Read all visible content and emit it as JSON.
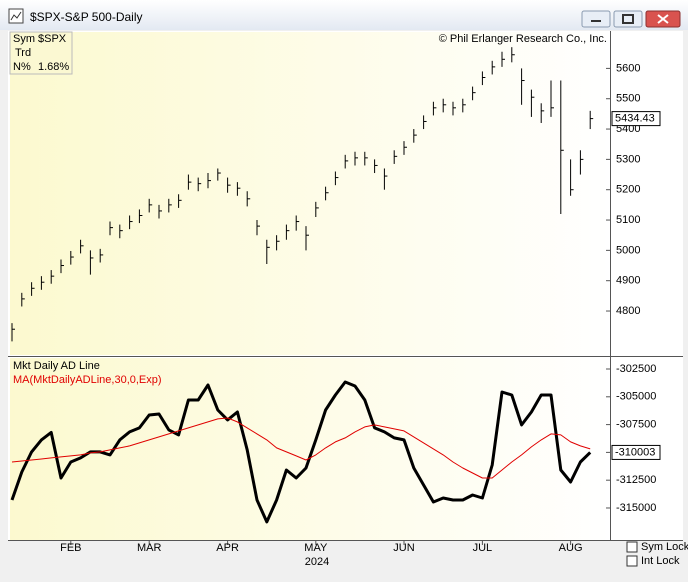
{
  "window": {
    "title": "$SPX-S&P 500-Daily"
  },
  "info": {
    "rows": [
      [
        "Sym",
        "$SPX"
      ],
      [
        "Trd"
      ],
      [
        "N%",
        "1.68%"
      ]
    ]
  },
  "controls": [
    "Sym Lock",
    "Int Lock"
  ],
  "chart_data": [
    {
      "type": "ohlc",
      "annotation": "© Phil Erlanger Research Co., Inc.",
      "color": "#000000",
      "close": [
        4740,
        4840,
        4875,
        4895,
        4915,
        4950,
        4978,
        5015,
        4975,
        4985,
        5075,
        5065,
        5095,
        5115,
        5150,
        5130,
        5150,
        5165,
        5225,
        5220,
        5230,
        5255,
        5215,
        5205,
        5170,
        5080,
        5010,
        5030,
        5065,
        5095,
        5050,
        5140,
        5190,
        5240,
        5295,
        5305,
        5305,
        5280,
        5245,
        5310,
        5340,
        5380,
        5425,
        5470,
        5480,
        5470,
        5480,
        5520,
        5570,
        5605,
        5630,
        5645,
        5560,
        5505,
        5460,
        5470,
        5330,
        5200,
        5300,
        5434.43
      ],
      "high": [
        4760,
        4860,
        4895,
        4915,
        4935,
        4970,
        4998,
        5035,
        5000,
        5005,
        5095,
        5085,
        5115,
        5135,
        5170,
        5150,
        5170,
        5185,
        5250,
        5240,
        5255,
        5270,
        5240,
        5225,
        5195,
        5100,
        5035,
        5050,
        5085,
        5115,
        5080,
        5160,
        5210,
        5260,
        5315,
        5325,
        5325,
        5300,
        5270,
        5330,
        5360,
        5400,
        5445,
        5490,
        5500,
        5490,
        5500,
        5540,
        5590,
        5625,
        5655,
        5670,
        5600,
        5530,
        5485,
        5560,
        5560,
        5300,
        5330,
        5460
      ],
      "low": [
        4700,
        4815,
        4850,
        4870,
        4890,
        4925,
        4953,
        4990,
        4920,
        4960,
        5050,
        5040,
        5070,
        5090,
        5125,
        5105,
        5125,
        5140,
        5200,
        5195,
        5205,
        5230,
        5190,
        5180,
        5145,
        5050,
        4955,
        5000,
        5035,
        5065,
        5000,
        5110,
        5165,
        5215,
        5270,
        5280,
        5280,
        5255,
        5200,
        5285,
        5315,
        5355,
        5400,
        5445,
        5455,
        5445,
        5455,
        5495,
        5545,
        5580,
        5605,
        5620,
        5480,
        5440,
        5420,
        5440,
        5120,
        5180,
        5250,
        5400
      ],
      "ylim": [
        4655,
        5720
      ],
      "yticks": [
        4800,
        4900,
        5000,
        5100,
        5200,
        5300,
        5400,
        5500,
        5600
      ]
    },
    {
      "type": "line",
      "x_label": "2024",
      "categories": [
        null,
        null,
        null,
        null,
        null,
        null,
        "FEB",
        null,
        null,
        null,
        null,
        null,
        null,
        null,
        "MAR",
        null,
        null,
        null,
        null,
        null,
        null,
        null,
        "APR",
        null,
        null,
        null,
        null,
        null,
        null,
        null,
        null,
        "MAY",
        null,
        null,
        null,
        null,
        null,
        null,
        null,
        null,
        "JUN",
        null,
        null,
        null,
        null,
        null,
        null,
        null,
        "JUL",
        null,
        null,
        null,
        null,
        null,
        null,
        null,
        null,
        "AUG",
        null,
        null
      ],
      "series": [
        {
          "name": "Mkt Daily AD Line",
          "color": "#000000",
          "values": [
            -314280,
            -311760,
            -309960,
            -308880,
            -308200,
            -312300,
            -310860,
            -310500,
            -309960,
            -309960,
            -310230,
            -308880,
            -308160,
            -307800,
            -306640,
            -306550,
            -307980,
            -308430,
            -305290,
            -305290,
            -303940,
            -306190,
            -307080,
            -306370,
            -309780,
            -314280,
            -316250,
            -314280,
            -311580,
            -312300,
            -311400,
            -308880,
            -306190,
            -304840,
            -303670,
            -304030,
            -305290,
            -307800,
            -308160,
            -308700,
            -308880,
            -311400,
            -312930,
            -314460,
            -314100,
            -314280,
            -314280,
            -313830,
            -314100,
            -311130,
            -304570,
            -304840,
            -307530,
            -306370,
            -304840,
            -304840,
            -311580,
            -312660,
            -310860,
            -310003
          ]
        },
        {
          "name": "MA(MktDailyADLine,30,0,Exp)",
          "color": "#e00000",
          "values": [
            -310860,
            -310770,
            -310680,
            -310590,
            -310500,
            -310410,
            -310320,
            -310230,
            -310050,
            -309960,
            -309780,
            -309600,
            -309420,
            -309150,
            -308880,
            -308610,
            -308340,
            -308070,
            -307800,
            -307530,
            -307260,
            -306990,
            -306910,
            -307260,
            -307800,
            -308340,
            -308880,
            -309600,
            -309960,
            -310320,
            -310680,
            -310230,
            -309600,
            -309060,
            -308700,
            -308160,
            -307710,
            -307530,
            -307710,
            -307890,
            -308070,
            -308610,
            -309150,
            -309690,
            -310230,
            -310860,
            -311400,
            -311850,
            -312300,
            -312300,
            -311580,
            -310860,
            -310230,
            -309510,
            -308880,
            -308340,
            -308430,
            -309060,
            -309420,
            -309690
          ]
        }
      ],
      "ylim": [
        -317880,
        -301510
      ],
      "yticks": [
        -302500,
        -305000,
        -307500,
        -310000,
        -312500,
        -315000
      ]
    }
  ]
}
